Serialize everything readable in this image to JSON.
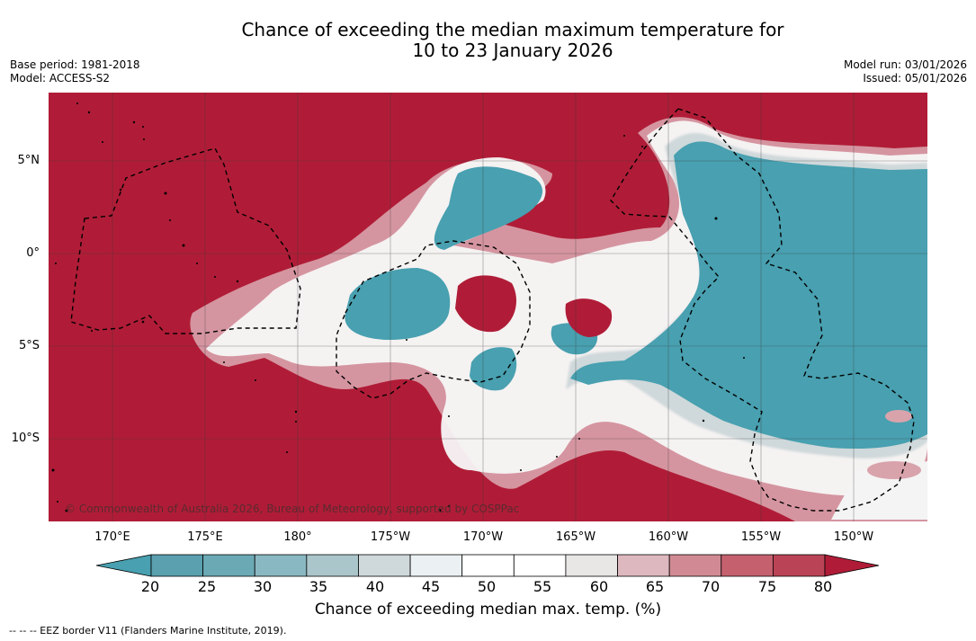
{
  "header": {
    "title_line1": "Chance of exceeding the median maximum temperature for",
    "title_line2": "10 to 23 January 2026",
    "base_period": "Base period: 1981-2018",
    "model": "Model: ACCESS-S2",
    "model_run": "Model run: 03/01/2026",
    "issued": "Issued: 05/01/2026"
  },
  "map": {
    "lon_ticks": [
      "170°E",
      "175°E",
      "180°",
      "175°W",
      "170°W",
      "165°W",
      "160°W",
      "155°W",
      "150°W"
    ],
    "lat_ticks": [
      "5°N",
      "0°",
      "5°S",
      "10°S"
    ],
    "copyright": "© Commonwealth of Australia 2026, Bureau of Meteorology, supported by COSPPac",
    "colors": {
      "high": "#b01c37",
      "low": "#48a0b0"
    }
  },
  "colorbar": {
    "labels": [
      "20",
      "25",
      "30",
      "35",
      "40",
      "45",
      "50",
      "55",
      "60",
      "65",
      "70",
      "75",
      "80"
    ],
    "colors": [
      "#5aa0ae",
      "#6ba9b5",
      "#8ab8c2",
      "#aac6cb",
      "#cfd8da",
      "#ebf0f2",
      "#ffffff",
      "#ffffff",
      "#e9e6e6",
      "#deb8bf",
      "#d18a93",
      "#c5616f",
      "#ba4455"
    ],
    "title": "Chance of exceeding median max. temp. (%)"
  },
  "legend": {
    "eez": "--  --  -- EEZ border V11 (Flanders Marine Institute, 2019)."
  }
}
